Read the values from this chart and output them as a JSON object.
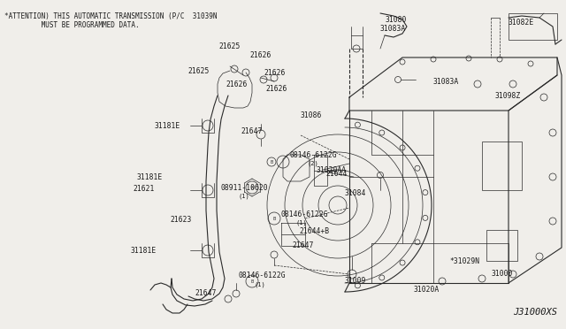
{
  "bg_color": "#f0eeea",
  "fig_width": 6.4,
  "fig_height": 3.72,
  "dpi": 100,
  "attention_line1": "*ATTENTION) THIS AUTOMATIC TRANSMISSION (P/C  31039N",
  "attention_line2": "         MUST BE PROGRAMMED DATA.",
  "diagram_id": "J31000XS",
  "line_color": "#2a2a2a",
  "label_color": "#1a1a1a"
}
